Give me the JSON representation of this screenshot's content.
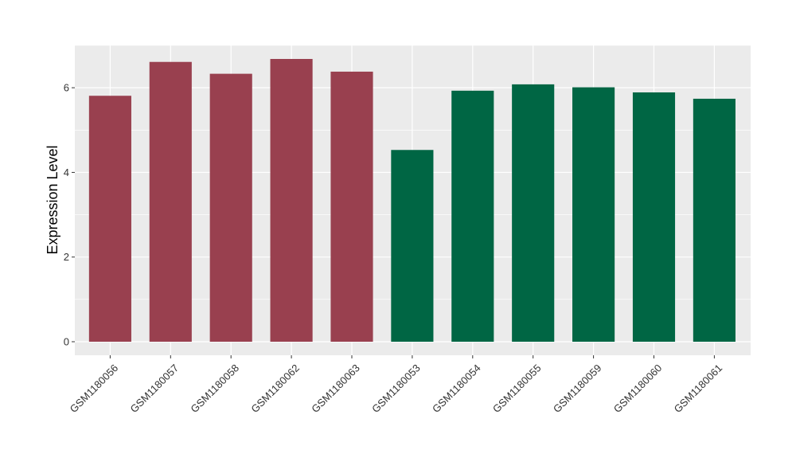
{
  "chart_data": {
    "type": "bar",
    "title": "",
    "xlabel": "",
    "ylabel": "Expression Level",
    "categories": [
      "GSM1180056",
      "GSM1180057",
      "GSM1180058",
      "GSM1180062",
      "GSM1180063",
      "GSM1180053",
      "GSM1180054",
      "GSM1180055",
      "GSM1180059",
      "GSM1180060",
      "GSM1180061"
    ],
    "values": [
      5.81,
      6.61,
      6.33,
      6.68,
      6.38,
      4.53,
      5.93,
      6.08,
      6.01,
      5.89,
      5.74
    ],
    "bar_colors": [
      "#99404f",
      "#99404f",
      "#99404f",
      "#99404f",
      "#99404f",
      "#006644",
      "#006644",
      "#006644",
      "#006644",
      "#006644",
      "#006644"
    ],
    "ylim": [
      -0.32,
      7.0
    ],
    "yticks": [
      0,
      2,
      4,
      6
    ],
    "grid": true,
    "panel_background": "#ebebeb",
    "grid_color": "#ffffff",
    "legend": "none"
  }
}
